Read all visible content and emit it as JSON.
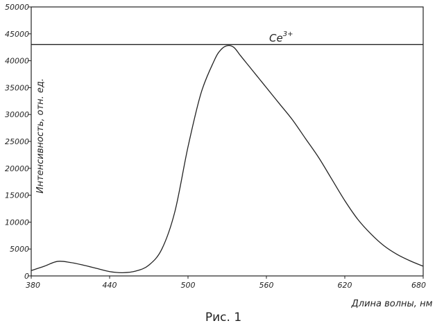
{
  "chart_data": {
    "type": "line",
    "title": "",
    "xlabel": "Длина волны, нм",
    "ylabel": "Интенсивность, отн. ед.",
    "xlim": [
      380,
      680
    ],
    "ylim": [
      0,
      50000
    ],
    "grid": false,
    "x_ticks": [
      "380",
      "440",
      "500",
      "560",
      "620",
      "680"
    ],
    "y_ticks": [
      "0",
      "5000",
      "10000",
      "15000",
      "20000",
      "25000",
      "30000",
      "35000",
      "40000",
      "45000",
      "50000"
    ],
    "series": [
      {
        "name": "Ce3+",
        "x": [
          380,
          390,
          400,
          410,
          420,
          430,
          440,
          450,
          460,
          470,
          480,
          490,
          500,
          510,
          520,
          525,
          530,
          535,
          540,
          545,
          550,
          555,
          560,
          570,
          580,
          590,
          600,
          610,
          620,
          630,
          640,
          650,
          660,
          670,
          680
        ],
        "y": [
          1000,
          1800,
          2700,
          2500,
          2000,
          1400,
          800,
          600,
          900,
          2000,
          5000,
          12000,
          24000,
          34000,
          40000,
          42000,
          42800,
          42500,
          41000,
          39500,
          38000,
          36500,
          35000,
          32000,
          29000,
          25500,
          22000,
          18000,
          14000,
          10500,
          7800,
          5600,
          4000,
          2800,
          1800
        ]
      }
    ],
    "reference_line": {
      "y": 43000,
      "label": "Ce",
      "label_sup": "3+"
    }
  },
  "caption": "Рис. 1"
}
